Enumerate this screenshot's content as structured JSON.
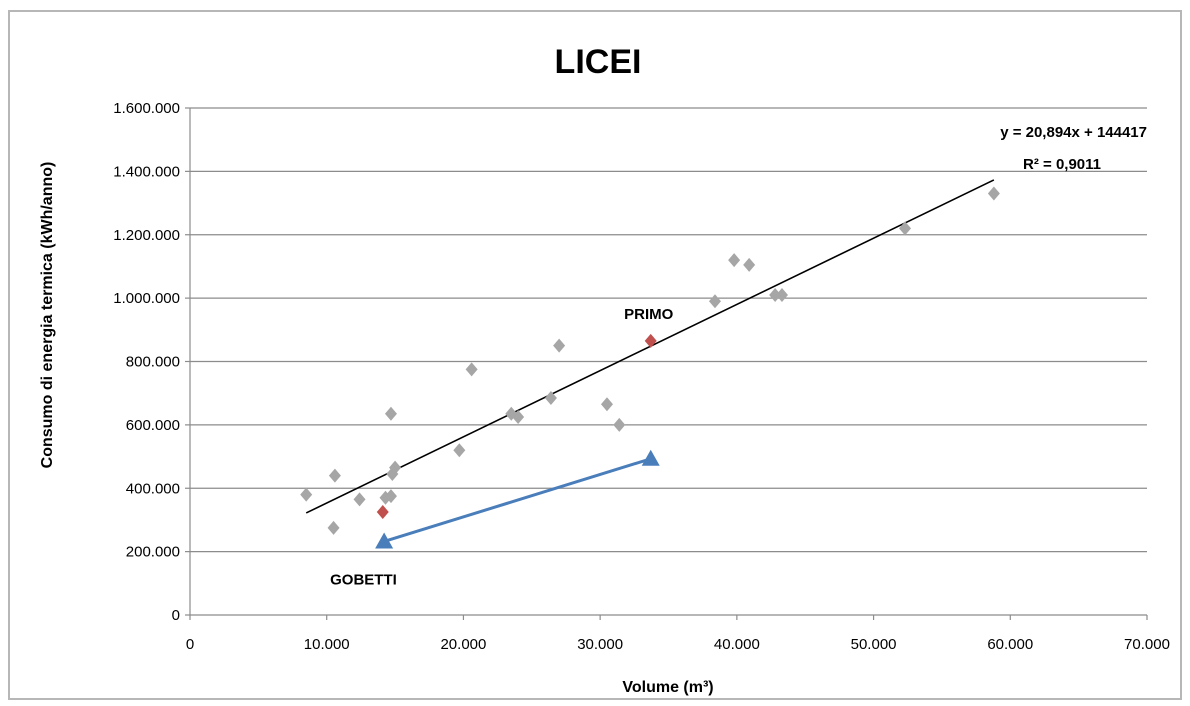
{
  "chart_data": {
    "type": "scatter",
    "title": "LICEI",
    "xlabel": "Volume (m³)",
    "ylabel": "Consumo di energia termica (kWh/anno)",
    "xlim": [
      0,
      70000
    ],
    "ylim": [
      0,
      1600000
    ],
    "x_ticks": [
      0,
      10000,
      20000,
      30000,
      40000,
      50000,
      60000,
      70000
    ],
    "x_tick_labels": [
      "0",
      "10.000",
      "20.000",
      "30.000",
      "40.000",
      "50.000",
      "60.000",
      "70.000"
    ],
    "y_ticks": [
      0,
      200000,
      400000,
      600000,
      800000,
      1000000,
      1200000,
      1400000,
      1600000
    ],
    "y_tick_labels": [
      "0",
      "200.000",
      "400.000",
      "600.000",
      "800.000",
      "1.000.000",
      "1.200.000",
      "1.400.000",
      "1.600.000"
    ],
    "grid": "horizontal",
    "series": [
      {
        "marker": "diamond",
        "color": "#a6a6a6",
        "points": [
          [
            8500,
            380000
          ],
          [
            10500,
            275000
          ],
          [
            10600,
            440000
          ],
          [
            12400,
            365000
          ],
          [
            14300,
            370000
          ],
          [
            14700,
            375000
          ],
          [
            14700,
            635000
          ],
          [
            14800,
            445000
          ],
          [
            15000,
            465000
          ],
          [
            19700,
            520000
          ],
          [
            20600,
            775000
          ],
          [
            23500,
            635000
          ],
          [
            24000,
            625000
          ],
          [
            26400,
            685000
          ],
          [
            27000,
            850000
          ],
          [
            30500,
            665000
          ],
          [
            31400,
            600000
          ],
          [
            38400,
            990000
          ],
          [
            39800,
            1120000
          ],
          [
            40900,
            1105000
          ],
          [
            42800,
            1010000
          ],
          [
            43300,
            1010000
          ],
          [
            52300,
            1220000
          ],
          [
            58800,
            1330000
          ]
        ]
      },
      {
        "marker": "diamond",
        "color": "#c0504d",
        "points": [
          [
            14100,
            325000
          ],
          [
            33700,
            865000
          ]
        ]
      },
      {
        "marker": "triangle",
        "color": "#4a7ebb",
        "connected": true,
        "points": [
          [
            14200,
            232000
          ],
          [
            33700,
            493000
          ]
        ]
      }
    ],
    "trendline": {
      "type": "linear",
      "slope": 20.894,
      "intercept": 144417,
      "x_range": [
        8500,
        58800
      ],
      "color": "#000000",
      "equation_label": "y = 20,894x + 144417",
      "r2_label": "R² = 0,9011"
    },
    "annotations": [
      {
        "text": "PRIMO",
        "x": 33700,
        "y": 865000
      },
      {
        "text": "GOBETTI",
        "x": 14200,
        "y": 232000
      }
    ]
  }
}
